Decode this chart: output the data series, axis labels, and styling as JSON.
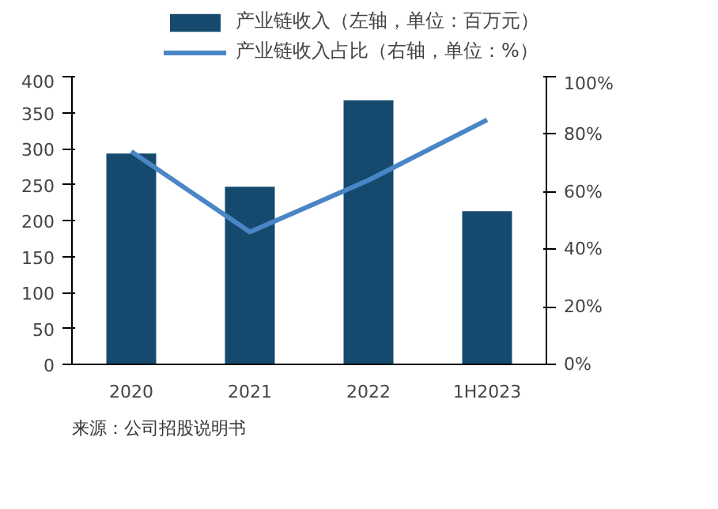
{
  "chart_data": {
    "type": "bar",
    "categories": [
      "2020",
      "2021",
      "2022",
      "1H2023"
    ],
    "series": [
      {
        "name": "产业链收入（左轴，单位：百万元）",
        "color": "#154a6e",
        "values": [
          293,
          247,
          367,
          213
        ]
      },
      {
        "name": "产业链收入占比（右轴，单位：%）",
        "type": "line",
        "axis": "y2",
        "color": "#4a86c5",
        "values": [
          74,
          46,
          64,
          85
        ]
      }
    ],
    "ylim": [
      0,
      400
    ],
    "yticks": [
      0,
      50,
      100,
      150,
      200,
      250,
      300,
      350,
      400
    ],
    "y2lim": [
      0,
      100
    ],
    "y2ticks": [
      {
        "value": 0,
        "label": "0%"
      },
      {
        "value": 20,
        "label": "20%"
      },
      {
        "value": 40,
        "label": "40%"
      },
      {
        "value": 60,
        "label": "60%"
      },
      {
        "value": 80,
        "label": "80%"
      },
      {
        "value": 100,
        "label": "100%"
      }
    ],
    "legend": "top",
    "annotations": [
      "来源：公司招股说明书"
    ]
  }
}
